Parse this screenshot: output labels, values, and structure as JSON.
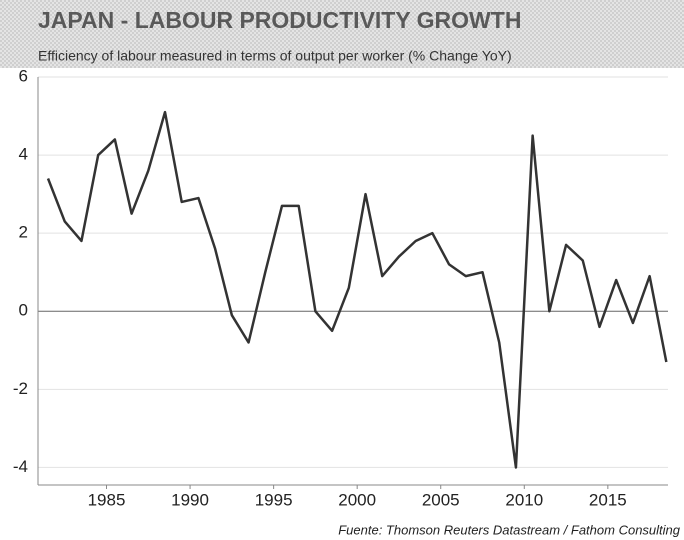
{
  "chart_data": {
    "type": "line",
    "title": "JAPAN - LABOUR PRODUCTIVITY GROWTH",
    "subtitle": "Efficiency of labour measured in terms of output per worker (% Change YoY)",
    "source": "Fuente: Thomson Reuters Datastream / Fathom Consulting",
    "x": [
      1981.5,
      1982.5,
      1983.5,
      1984.5,
      1985.5,
      1986.5,
      1987.5,
      1988.5,
      1989.5,
      1990.5,
      1991.5,
      1992.5,
      1993.5,
      1994.5,
      1995.5,
      1996.5,
      1997.5,
      1998.5,
      1999.5,
      2000.5,
      2001.5,
      2002.5,
      2003.5,
      2004.5,
      2005.5,
      2006.5,
      2007.5,
      2008.5,
      2009.5,
      2010.5,
      2011.5,
      2012.5,
      2013.5,
      2014.5,
      2015.5,
      2016.5,
      2017.5,
      2018.5
    ],
    "series": [
      {
        "color": "#333333",
        "values": [
          3.4,
          2.3,
          1.8,
          4.0,
          4.4,
          2.5,
          3.6,
          5.1,
          2.8,
          2.9,
          1.6,
          -0.1,
          -0.8,
          1.0,
          2.7,
          2.7,
          0.0,
          -0.5,
          0.6,
          3.0,
          0.9,
          1.4,
          1.8,
          2.0,
          1.2,
          0.9,
          1.0,
          -0.8,
          -4.0,
          4.5,
          0.0,
          1.7,
          1.3,
          -0.4,
          0.8,
          -0.3,
          0.9,
          -1.3
        ]
      }
    ],
    "xlim": [
      1980.9,
      2018.6
    ],
    "xticks": [
      1985,
      1990,
      1995,
      2000,
      2005,
      2010,
      2015
    ],
    "ylim": [
      -4.45,
      6
    ],
    "yticks": [
      -4,
      -2,
      0,
      2,
      4,
      6
    ],
    "grid": true
  }
}
